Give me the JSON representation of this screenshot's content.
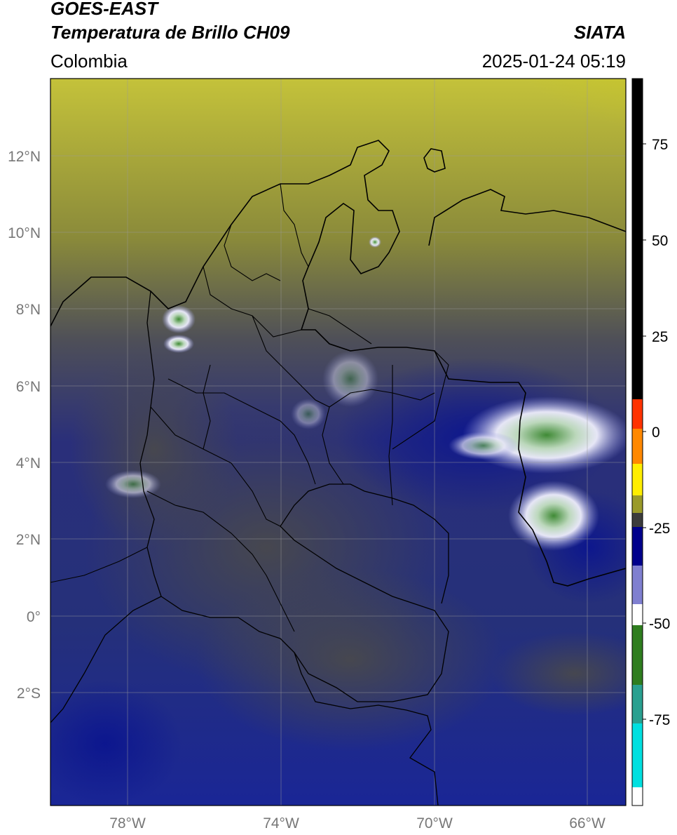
{
  "header": {
    "title_line1": "GOES-EAST",
    "title_line2": "Temperatura de Brillo CH09",
    "region": "Colombia",
    "organization": "SIATA",
    "timestamp": "2025-01-24 05:19"
  },
  "map": {
    "lat_labels": [
      "12°N",
      "10°N",
      "8°N",
      "6°N",
      "4°N",
      "2°N",
      "0°",
      "2°S"
    ],
    "lon_labels": [
      "78°W",
      "74°W",
      "70°W",
      "66°W"
    ],
    "extent": {
      "lon_min": -80,
      "lon_max": -65,
      "lat_min": -5,
      "lat_max": 14
    }
  },
  "colorbar": {
    "ticks": [
      "75",
      "50",
      "25",
      "0",
      "-25",
      "-50",
      "-75"
    ],
    "range": [
      -95,
      90
    ],
    "colors": {
      "black": "#000000",
      "red": "#ff2200",
      "orange": "#ff9900",
      "yellow": "#ffff00",
      "olive": "#9a9a2a",
      "gray": "#454545",
      "navy": "#00008b",
      "white": "#ffffff",
      "green": "#2f7d1f",
      "cyan": "#00e0e0"
    }
  }
}
